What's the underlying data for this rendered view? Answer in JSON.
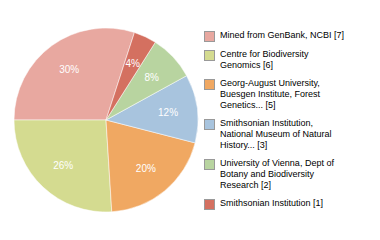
{
  "chart_data": {
    "type": "pie",
    "categories": [
      "Mined from GenBank, NCBI [7]",
      "Centre for Biodiversity\nGenomics [6]",
      "Georg-August University,\nBuesgen Institute, Forest\nGenetics... [5]",
      "Smithsonian Institution,\nNational Museum of Natural\nHistory... [3]",
      "University of Vienna, Dept of\nBotany and Biodiversity\nResearch [2]",
      "Smithsonian Institution [1]"
    ],
    "values": [
      30,
      26,
      20,
      12,
      8,
      4
    ],
    "value_labels": [
      "30%",
      "26%",
      "20%",
      "12%",
      "8%",
      "4%"
    ],
    "colors": [
      "#e8a8a0",
      "#d4db90",
      "#f0a862",
      "#a8c4de",
      "#b8d4a0",
      "#d47060"
    ],
    "data_labels": true,
    "legend": "right"
  }
}
